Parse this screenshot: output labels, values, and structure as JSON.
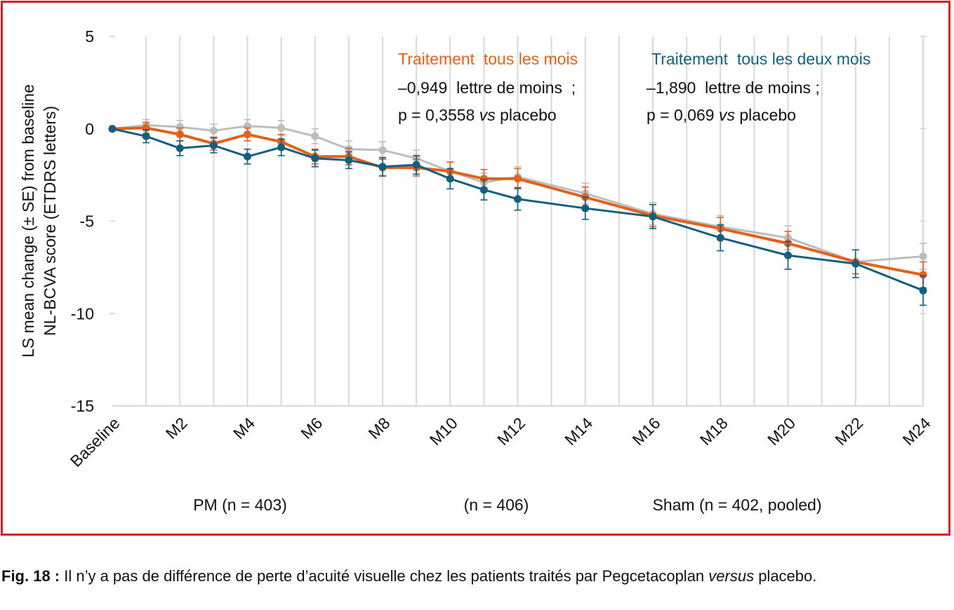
{
  "chart_data": {
    "type": "line",
    "ylabel_line1": "LS mean change (± SE) from baseline",
    "ylabel_line2": "NL-BCVA score (ETDRS letters)",
    "ylim": [
      -15,
      5
    ],
    "yticks": [
      "5",
      "0",
      "-5",
      "-10",
      "-15"
    ],
    "ytick_values": [
      5,
      0,
      -5,
      -10,
      -15
    ],
    "xtick_labels": [
      "Baseline",
      "M2",
      "M4",
      "M6",
      "M8",
      "M10",
      "M12",
      "M14",
      "M16",
      "M18",
      "M20",
      "M22",
      "M24"
    ],
    "grid": "vertical gridlines",
    "series": [
      {
        "color": "#bdbdbd",
        "x": [
          0,
          1,
          2,
          3,
          4,
          5,
          6,
          7,
          8,
          9,
          10,
          11,
          12,
          14,
          16,
          18,
          20,
          22,
          24
        ],
        "y": [
          0,
          0.2,
          0.1,
          -0.1,
          0.15,
          0.05,
          -0.4,
          -1.1,
          -1.15,
          -1.6,
          -2.3,
          -2.9,
          -2.6,
          -3.5,
          -4.6,
          -5.3,
          -5.9,
          -7.2,
          -6.9
        ],
        "se": [
          0,
          0.3,
          0.35,
          0.35,
          0.35,
          0.4,
          0.4,
          0.45,
          0.45,
          0.45,
          0.5,
          0.5,
          0.55,
          0.55,
          0.6,
          0.6,
          0.65,
          0.65,
          0.7
        ]
      },
      {
        "color": "#e2611d",
        "x": [
          0,
          1,
          2,
          3,
          4,
          5,
          6,
          7,
          8,
          9,
          10,
          11,
          12,
          14,
          16,
          18,
          20,
          22,
          24
        ],
        "y": [
          0,
          0.05,
          -0.3,
          -0.8,
          -0.3,
          -0.7,
          -1.5,
          -1.5,
          -2.1,
          -2.1,
          -2.3,
          -2.7,
          -2.7,
          -3.7,
          -4.7,
          -5.4,
          -6.2,
          -7.2,
          -7.9
        ],
        "se": [
          0,
          0.3,
          0.35,
          0.35,
          0.35,
          0.4,
          0.4,
          0.45,
          0.45,
          0.45,
          0.5,
          0.5,
          0.55,
          0.55,
          0.6,
          0.6,
          0.65,
          0.65,
          0.7
        ]
      },
      {
        "color": "#145f7e",
        "x": [
          0,
          1,
          2,
          3,
          4,
          5,
          6,
          7,
          8,
          9,
          10,
          11,
          12,
          14,
          16,
          18,
          20,
          22,
          24
        ],
        "y": [
          0,
          -0.4,
          -1.05,
          -0.9,
          -1.5,
          -1.0,
          -1.6,
          -1.7,
          -2.05,
          -1.95,
          -2.7,
          -3.3,
          -3.8,
          -4.3,
          -4.75,
          -5.9,
          -6.85,
          -7.3,
          -8.75
        ],
        "se": [
          0,
          0.35,
          0.4,
          0.4,
          0.4,
          0.45,
          0.45,
          0.45,
          0.5,
          0.5,
          0.55,
          0.55,
          0.6,
          0.6,
          0.65,
          0.7,
          0.75,
          0.75,
          0.8
        ]
      }
    ],
    "annotations": {
      "monthly_title": "Traitement  tous les mois",
      "monthly_line1": "–0,949  lettre de moins  ;",
      "monthly_line2_prefix": "p = 0,3558 ",
      "monthly_line2_vs": "vs",
      "monthly_line2_suffix": " placebo",
      "bimonthly_title": "Traitement  tous les deux mois",
      "bimonthly_line1": "–1,890  lettre de moins ;",
      "bimonthly_line2_prefix": "p = 0,069 ",
      "bimonthly_line2_vs": "vs",
      "bimonthly_line2_suffix": " placebo"
    },
    "footer_labels": [
      "PM (n = 403)",
      "(n = 406)",
      "Sham (n = 402, pooled)"
    ]
  },
  "caption": {
    "label": "Fig. 18 :",
    "text": " Il n’y a pas de différence de perte d’acuité visuelle chez les patients traités par Pegcetacoplan ",
    "italic": "versus",
    "text2": " placebo."
  },
  "colors": {
    "frame": "#d0202a",
    "orange": "#e2611d",
    "teal": "#145f7e",
    "grey": "#bdbdbd",
    "grid": "#d9d9d9"
  }
}
